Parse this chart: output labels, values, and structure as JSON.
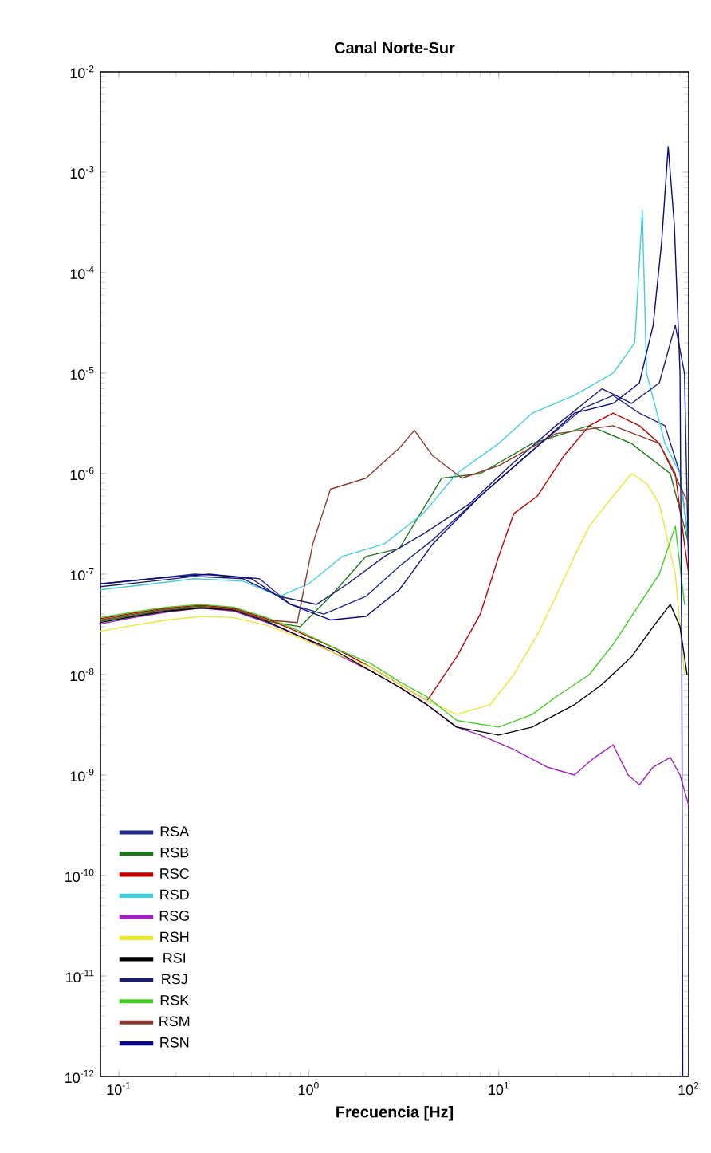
{
  "chart_data": {
    "type": "line",
    "title": "Canal Norte-Sur",
    "xlabel": "Frecuencia [Hz]",
    "log": "xy",
    "legend": "bottom left",
    "xlim": [
      0.08,
      100
    ],
    "ylim": [
      1e-12,
      0.01
    ],
    "xticks": [
      {
        "value": 0.1,
        "label": "10$^{-1}$"
      },
      {
        "value": 1,
        "label": "10$^{0}$"
      },
      {
        "value": 10,
        "label": "10$^{1}$"
      },
      {
        "value": 100,
        "label": "10$^{2}$"
      }
    ],
    "yticks": [
      {
        "value": 1e-12,
        "label": "10$^{-12}$"
      },
      {
        "value": 1e-11,
        "label": "10$^{-11}$"
      },
      {
        "value": 1e-10,
        "label": "10$^{-10}$"
      },
      {
        "value": 1e-09,
        "label": "10$^{-9}$"
      },
      {
        "value": 1e-08,
        "label": "10$^{-8}$"
      },
      {
        "value": 1e-07,
        "label": "10$^{-7}$"
      },
      {
        "value": 1e-06,
        "label": "10$^{-6}$"
      },
      {
        "value": 1e-05,
        "label": "10$^{-5}$"
      },
      {
        "value": 0.0001,
        "label": "10$^{-4}$"
      },
      {
        "value": 0.001,
        "label": "10$^{-3}$"
      },
      {
        "value": 0.01,
        "label": "10$^{-2}$"
      }
    ],
    "series": [
      {
        "name": "RSA",
        "color": "#1f2a8a",
        "x": [
          0.08,
          0.15,
          0.25,
          0.4,
          0.55,
          0.8,
          1.2,
          2,
          3,
          4.5,
          8,
          15,
          28,
          40,
          55,
          75,
          90,
          100
        ],
        "values": [
          8e-08,
          9e-08,
          1e-07,
          9.5e-08,
          9e-08,
          5e-08,
          4e-08,
          6e-08,
          1.2e-07,
          2.2e-07,
          6e-07,
          1.7e-06,
          4.5e-06,
          6e-06,
          4e-06,
          3e-06,
          1e-06,
          2e-07
        ]
      },
      {
        "name": "RSB",
        "color": "#1a7a1a",
        "x": [
          0.08,
          0.12,
          0.18,
          0.27,
          0.4,
          0.6,
          0.9,
          1.3,
          2,
          3,
          5,
          8,
          15,
          30,
          50,
          80,
          100
        ],
        "values": [
          3.4e-08,
          3.9e-08,
          4.4e-08,
          4.7e-08,
          4.4e-08,
          3.4e-08,
          3e-08,
          6e-08,
          1.5e-07,
          1.8e-07,
          9e-07,
          1e-06,
          2e-06,
          3e-06,
          2e-06,
          1e-06,
          2e-07
        ]
      },
      {
        "name": "RSC",
        "color": "#c00000",
        "x": [
          0.08,
          0.12,
          0.18,
          0.27,
          0.4,
          0.6,
          0.9,
          1.4,
          2.1,
          3,
          4.2,
          6,
          8,
          10,
          12,
          16,
          22,
          30,
          40,
          55,
          70,
          85,
          95,
          100
        ],
        "values": [
          3.6e-08,
          4.1e-08,
          4.6e-08,
          4.9e-08,
          4.6e-08,
          3.6e-08,
          2.6e-08,
          1.8e-08,
          1.2e-08,
          8e-09,
          5.5e-09,
          1.5e-08,
          4e-08,
          1.5e-07,
          4e-07,
          6e-07,
          1.5e-06,
          3e-06,
          4e-06,
          3e-06,
          2e-06,
          1e-06,
          2e-07,
          1e-07
        ]
      },
      {
        "name": "RSD",
        "color": "#40d0e0",
        "x": [
          0.08,
          0.15,
          0.25,
          0.45,
          0.7,
          1,
          1.5,
          2.5,
          4,
          6,
          10,
          15,
          25,
          40,
          52,
          57,
          60,
          75,
          90,
          100
        ],
        "values": [
          7e-08,
          8e-08,
          9e-08,
          8.5e-08,
          6e-08,
          8e-08,
          1.5e-07,
          2e-07,
          4e-07,
          1e-06,
          2e-06,
          4e-06,
          6e-06,
          1e-05,
          2e-05,
          0.00042,
          1e-05,
          2e-06,
          1e-06,
          2e-07
        ]
      },
      {
        "name": "RSG",
        "color": "#a020c0",
        "x": [
          0.08,
          0.12,
          0.18,
          0.27,
          0.4,
          0.6,
          0.9,
          1.4,
          2.1,
          3,
          4.2,
          6,
          8,
          12,
          18,
          25,
          32,
          40,
          48,
          55,
          65,
          80,
          90,
          100
        ],
        "values": [
          3.2e-08,
          3.7e-08,
          4.2e-08,
          4.6e-08,
          4.3e-08,
          3.3e-08,
          2.4e-08,
          1.6e-08,
          1.1e-08,
          7.5e-09,
          5e-09,
          3e-09,
          2.5e-09,
          1.8e-09,
          1.2e-09,
          1e-09,
          1.5e-09,
          2e-09,
          1e-09,
          8e-10,
          1.2e-09,
          1.5e-09,
          1e-09,
          5e-10
        ]
      },
      {
        "name": "RSH",
        "color": "#e8e830",
        "x": [
          0.08,
          0.12,
          0.18,
          0.27,
          0.4,
          0.6,
          0.9,
          1.4,
          2.1,
          3,
          4.2,
          6,
          9,
          12,
          16,
          20,
          25,
          30,
          40,
          50,
          60,
          70,
          85,
          95
        ],
        "values": [
          2.7e-08,
          3.1e-08,
          3.5e-08,
          3.8e-08,
          3.7e-08,
          3.1e-08,
          2.3e-08,
          1.6e-08,
          1.2e-08,
          8e-09,
          5.5e-09,
          4e-09,
          5e-09,
          1e-08,
          2.5e-08,
          6e-08,
          1.5e-07,
          3e-07,
          6e-07,
          1e-06,
          8e-07,
          5e-07,
          1e-07,
          1e-08
        ]
      },
      {
        "name": "RSI",
        "color": "#000000",
        "x": [
          0.08,
          0.12,
          0.18,
          0.27,
          0.4,
          0.6,
          0.9,
          1.4,
          2.1,
          3,
          4.2,
          6,
          10,
          15,
          25,
          35,
          50,
          65,
          80,
          90,
          98
        ],
        "values": [
          3.3e-08,
          3.8e-08,
          4.3e-08,
          4.6e-08,
          4.4e-08,
          3.4e-08,
          2.4e-08,
          1.7e-08,
          1.1e-08,
          7.5e-09,
          5e-09,
          3e-09,
          2.5e-09,
          3e-09,
          5e-09,
          8e-09,
          1.5e-08,
          3e-08,
          5e-08,
          3e-08,
          1e-08
        ]
      },
      {
        "name": "RSJ",
        "color": "#1c1c6e",
        "x": [
          0.08,
          0.15,
          0.25,
          0.45,
          0.7,
          1.1,
          1.6,
          2.5,
          4,
          7,
          12,
          20,
          35,
          50,
          70,
          85,
          95,
          100
        ],
        "values": [
          7.5e-08,
          8.5e-08,
          9.5e-08,
          9e-08,
          6e-08,
          5e-08,
          8e-08,
          1.5e-07,
          2.5e-07,
          5e-07,
          1.3e-06,
          3e-06,
          7e-06,
          5e-06,
          8e-06,
          3e-05,
          1e-05,
          1e-07
        ]
      },
      {
        "name": "RSK",
        "color": "#40d020",
        "x": [
          0.08,
          0.12,
          0.18,
          0.27,
          0.4,
          0.6,
          0.9,
          1.4,
          2.1,
          3,
          4.2,
          6,
          10,
          15,
          20,
          30,
          40,
          55,
          70,
          85,
          95
        ],
        "values": [
          3.7e-08,
          4.2e-08,
          4.7e-08,
          5e-08,
          4.7e-08,
          3.7e-08,
          2.7e-08,
          1.8e-08,
          1.3e-08,
          8.5e-09,
          6e-09,
          3.5e-09,
          3e-09,
          4e-09,
          6e-09,
          1e-08,
          2e-08,
          5e-08,
          1e-07,
          3e-07,
          5e-08
        ]
      },
      {
        "name": "RSM",
        "color": "#8b3a2a",
        "x": [
          0.08,
          0.12,
          0.18,
          0.27,
          0.4,
          0.6,
          0.87,
          1.05,
          1.3,
          2,
          3,
          3.6,
          4.5,
          6.4,
          10,
          20,
          40,
          70,
          100
        ],
        "values": [
          3.5e-08,
          4e-08,
          4.5e-08,
          4.8e-08,
          4.5e-08,
          3.5e-08,
          3.3e-08,
          2e-07,
          7e-07,
          9e-07,
          1.8e-06,
          2.7e-06,
          1.5e-06,
          9e-07,
          1.2e-06,
          2.5e-06,
          3e-06,
          2e-06,
          5e-07
        ]
      },
      {
        "name": "RSN",
        "color": "#0a0a80",
        "x": [
          0.08,
          0.15,
          0.3,
          0.5,
          0.8,
          1.3,
          2,
          3,
          4.5,
          8,
          14,
          25,
          40,
          55,
          65,
          72,
          78,
          84,
          90,
          92,
          93
        ],
        "values": [
          8e-08,
          9e-08,
          1e-07,
          9e-08,
          5e-08,
          3.5e-08,
          3.8e-08,
          7e-08,
          2e-07,
          6e-07,
          1.5e-06,
          4e-06,
          5e-06,
          8e-06,
          3e-05,
          0.0002,
          0.0018,
          0.0003,
          1e-05,
          1e-08,
          1e-12
        ]
      }
    ]
  }
}
